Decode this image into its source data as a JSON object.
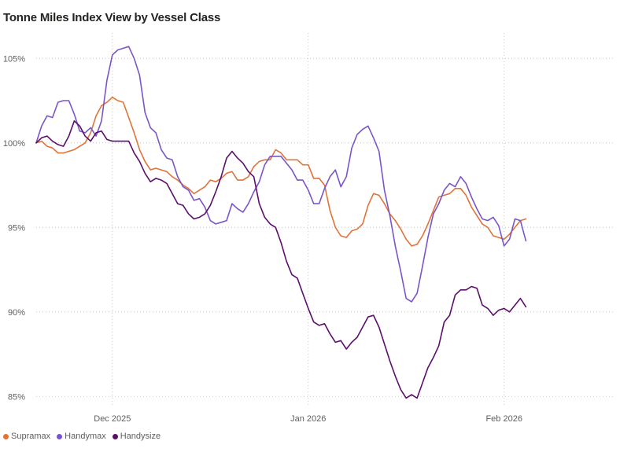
{
  "chart_data": {
    "type": "line",
    "title": "Tonne Miles Index View by Vessel Class",
    "xlabel": "",
    "ylabel": "",
    "ylim": [
      84.5,
      106.5
    ],
    "yticks": [
      85,
      90,
      95,
      100,
      105
    ],
    "ytick_labels": [
      "85%",
      "90%",
      "95%",
      "100%",
      "105%"
    ],
    "xlim": [
      -14,
      92
    ],
    "xticks": [
      {
        "x": 0,
        "label": "Dec 2025"
      },
      {
        "x": 36,
        "label": "Jan 2026"
      },
      {
        "x": 72,
        "label": "Feb 2026"
      }
    ],
    "grid": true,
    "legend_position": "bottom-left",
    "x_unit": "days since 1 Dec 2025",
    "series": [
      {
        "name": "Supramax",
        "color": "#E07339",
        "points": [
          [
            -14,
            100.0
          ],
          [
            -13,
            100.1
          ],
          [
            -12,
            99.8
          ],
          [
            -11,
            99.7
          ],
          [
            -10,
            99.4
          ],
          [
            -9,
            99.4
          ],
          [
            -8,
            99.5
          ],
          [
            -7,
            99.6
          ],
          [
            -6,
            99.8
          ],
          [
            -5,
            100.0
          ],
          [
            -4,
            100.6
          ],
          [
            -3,
            101.6
          ],
          [
            -2,
            102.2
          ],
          [
            -1,
            102.4
          ],
          [
            0,
            102.7
          ],
          [
            1,
            102.5
          ],
          [
            2,
            102.4
          ],
          [
            3,
            101.5
          ],
          [
            4,
            100.6
          ],
          [
            5,
            99.6
          ],
          [
            6,
            98.9
          ],
          [
            7,
            98.4
          ],
          [
            8,
            98.5
          ],
          [
            9,
            98.4
          ],
          [
            10,
            98.3
          ],
          [
            11,
            98.0
          ],
          [
            12,
            97.8
          ],
          [
            13,
            97.5
          ],
          [
            14,
            97.3
          ],
          [
            15,
            97.0
          ],
          [
            16,
            97.2
          ],
          [
            17,
            97.4
          ],
          [
            18,
            97.8
          ],
          [
            19,
            97.7
          ],
          [
            20,
            97.9
          ],
          [
            21,
            98.2
          ],
          [
            22,
            98.3
          ],
          [
            23,
            97.8
          ],
          [
            24,
            97.8
          ],
          [
            25,
            98.0
          ],
          [
            26,
            98.6
          ],
          [
            27,
            98.9
          ],
          [
            28,
            99.0
          ],
          [
            29,
            99.0
          ],
          [
            30,
            99.6
          ],
          [
            31,
            99.4
          ],
          [
            32,
            99.0
          ],
          [
            33,
            99.0
          ],
          [
            34,
            99.0
          ],
          [
            35,
            98.7
          ],
          [
            36,
            98.7
          ],
          [
            37,
            97.9
          ],
          [
            38,
            97.9
          ],
          [
            39,
            97.5
          ],
          [
            40,
            96.0
          ],
          [
            41,
            95.0
          ],
          [
            42,
            94.5
          ],
          [
            43,
            94.4
          ],
          [
            44,
            94.8
          ],
          [
            45,
            94.9
          ],
          [
            46,
            95.2
          ],
          [
            47,
            96.3
          ],
          [
            48,
            97.0
          ],
          [
            49,
            96.9
          ],
          [
            50,
            96.4
          ],
          [
            51,
            95.8
          ],
          [
            52,
            95.4
          ],
          [
            53,
            94.9
          ],
          [
            54,
            94.3
          ],
          [
            55,
            93.9
          ],
          [
            56,
            94.0
          ],
          [
            57,
            94.5
          ],
          [
            58,
            95.2
          ],
          [
            59,
            96.0
          ],
          [
            60,
            96.8
          ],
          [
            61,
            96.9
          ],
          [
            62,
            97.0
          ],
          [
            63,
            97.3
          ],
          [
            64,
            97.3
          ],
          [
            65,
            96.9
          ],
          [
            66,
            96.2
          ],
          [
            67,
            95.7
          ],
          [
            68,
            95.2
          ],
          [
            69,
            95.0
          ],
          [
            70,
            94.5
          ],
          [
            71,
            94.4
          ],
          [
            72,
            94.3
          ],
          [
            73,
            94.6
          ],
          [
            74,
            95.0
          ],
          [
            75,
            95.4
          ],
          [
            76,
            95.5
          ]
        ]
      },
      {
        "name": "Handymax",
        "color": "#7A55C8",
        "points": [
          [
            -14,
            100.0
          ],
          [
            -13,
            101.0
          ],
          [
            -12,
            101.6
          ],
          [
            -11,
            101.5
          ],
          [
            -10,
            102.4
          ],
          [
            -9,
            102.5
          ],
          [
            -8,
            102.5
          ],
          [
            -7,
            101.7
          ],
          [
            -6,
            100.7
          ],
          [
            -5,
            100.6
          ],
          [
            -4,
            100.9
          ],
          [
            -3,
            100.4
          ],
          [
            -2,
            101.3
          ],
          [
            -1,
            103.7
          ],
          [
            0,
            105.2
          ],
          [
            1,
            105.5
          ],
          [
            2,
            105.6
          ],
          [
            3,
            105.7
          ],
          [
            4,
            105.0
          ],
          [
            5,
            104.0
          ],
          [
            6,
            101.8
          ],
          [
            7,
            100.9
          ],
          [
            8,
            100.6
          ],
          [
            9,
            99.6
          ],
          [
            10,
            99.1
          ],
          [
            11,
            99.0
          ],
          [
            12,
            98.0
          ],
          [
            13,
            97.4
          ],
          [
            14,
            97.2
          ],
          [
            15,
            96.6
          ],
          [
            16,
            96.7
          ],
          [
            17,
            96.2
          ],
          [
            18,
            95.4
          ],
          [
            19,
            95.2
          ],
          [
            20,
            95.3
          ],
          [
            21,
            95.4
          ],
          [
            22,
            96.4
          ],
          [
            23,
            96.1
          ],
          [
            24,
            95.9
          ],
          [
            25,
            96.4
          ],
          [
            26,
            97.1
          ],
          [
            27,
            97.7
          ],
          [
            28,
            98.7
          ],
          [
            29,
            99.2
          ],
          [
            30,
            99.2
          ],
          [
            31,
            99.2
          ],
          [
            32,
            98.8
          ],
          [
            33,
            98.4
          ],
          [
            34,
            97.8
          ],
          [
            35,
            97.8
          ],
          [
            36,
            97.2
          ],
          [
            37,
            96.4
          ],
          [
            38,
            96.4
          ],
          [
            39,
            97.3
          ],
          [
            40,
            98.0
          ],
          [
            41,
            98.4
          ],
          [
            42,
            97.4
          ],
          [
            43,
            98.0
          ],
          [
            44,
            99.7
          ],
          [
            45,
            100.5
          ],
          [
            46,
            100.8
          ],
          [
            47,
            101.0
          ],
          [
            48,
            100.3
          ],
          [
            49,
            99.5
          ],
          [
            50,
            97.2
          ],
          [
            51,
            95.7
          ],
          [
            52,
            93.9
          ],
          [
            53,
            92.4
          ],
          [
            54,
            90.8
          ],
          [
            55,
            90.6
          ],
          [
            56,
            91.1
          ],
          [
            57,
            92.7
          ],
          [
            58,
            94.4
          ],
          [
            59,
            95.8
          ],
          [
            60,
            96.4
          ],
          [
            61,
            97.2
          ],
          [
            62,
            97.6
          ],
          [
            63,
            97.4
          ],
          [
            64,
            98.0
          ],
          [
            65,
            97.6
          ],
          [
            66,
            96.8
          ],
          [
            67,
            96.1
          ],
          [
            68,
            95.5
          ],
          [
            69,
            95.4
          ],
          [
            70,
            95.6
          ],
          [
            71,
            95.1
          ],
          [
            72,
            93.9
          ],
          [
            73,
            94.3
          ],
          [
            74,
            95.5
          ],
          [
            75,
            95.4
          ],
          [
            76,
            94.2
          ]
        ]
      },
      {
        "name": "Handysize",
        "color": "#5B0F6B",
        "points": [
          [
            -14,
            100.0
          ],
          [
            -13,
            100.3
          ],
          [
            -12,
            100.4
          ],
          [
            -11,
            100.1
          ],
          [
            -10,
            99.9
          ],
          [
            -9,
            99.8
          ],
          [
            -8,
            100.4
          ],
          [
            -7,
            101.3
          ],
          [
            -6,
            101.0
          ],
          [
            -5,
            100.4
          ],
          [
            -4,
            100.1
          ],
          [
            -3,
            100.6
          ],
          [
            -2,
            100.7
          ],
          [
            -1,
            100.2
          ],
          [
            0,
            100.1
          ],
          [
            1,
            100.1
          ],
          [
            2,
            100.1
          ],
          [
            3,
            100.1
          ],
          [
            4,
            99.4
          ],
          [
            5,
            98.9
          ],
          [
            6,
            98.2
          ],
          [
            7,
            97.7
          ],
          [
            8,
            97.9
          ],
          [
            9,
            97.8
          ],
          [
            10,
            97.6
          ],
          [
            11,
            97.0
          ],
          [
            12,
            96.4
          ],
          [
            13,
            96.3
          ],
          [
            14,
            95.8
          ],
          [
            15,
            95.5
          ],
          [
            16,
            95.6
          ],
          [
            17,
            95.8
          ],
          [
            18,
            96.3
          ],
          [
            19,
            97.1
          ],
          [
            20,
            98.0
          ],
          [
            21,
            99.1
          ],
          [
            22,
            99.5
          ],
          [
            23,
            99.1
          ],
          [
            24,
            98.8
          ],
          [
            25,
            98.3
          ],
          [
            26,
            98.0
          ],
          [
            27,
            96.4
          ],
          [
            28,
            95.6
          ],
          [
            29,
            95.2
          ],
          [
            30,
            95.0
          ],
          [
            31,
            94.1
          ],
          [
            32,
            93.0
          ],
          [
            33,
            92.2
          ],
          [
            34,
            92.0
          ],
          [
            35,
            91.1
          ],
          [
            36,
            90.2
          ],
          [
            37,
            89.4
          ],
          [
            38,
            89.2
          ],
          [
            39,
            89.3
          ],
          [
            40,
            88.7
          ],
          [
            41,
            88.2
          ],
          [
            42,
            88.3
          ],
          [
            43,
            87.8
          ],
          [
            44,
            88.2
          ],
          [
            45,
            88.5
          ],
          [
            46,
            89.1
          ],
          [
            47,
            89.7
          ],
          [
            48,
            89.8
          ],
          [
            49,
            89.1
          ],
          [
            50,
            88.1
          ],
          [
            51,
            87.1
          ],
          [
            52,
            86.2
          ],
          [
            53,
            85.4
          ],
          [
            54,
            84.9
          ],
          [
            55,
            85.1
          ],
          [
            56,
            84.9
          ],
          [
            57,
            85.8
          ],
          [
            58,
            86.7
          ],
          [
            59,
            87.3
          ],
          [
            60,
            88.0
          ],
          [
            61,
            89.4
          ],
          [
            62,
            89.8
          ],
          [
            63,
            91.0
          ],
          [
            64,
            91.3
          ],
          [
            65,
            91.3
          ],
          [
            66,
            91.5
          ],
          [
            67,
            91.4
          ],
          [
            68,
            90.4
          ],
          [
            69,
            90.2
          ],
          [
            70,
            89.8
          ],
          [
            71,
            90.1
          ],
          [
            72,
            90.2
          ],
          [
            73,
            90.0
          ],
          [
            74,
            90.4
          ],
          [
            75,
            90.8
          ],
          [
            76,
            90.3
          ]
        ]
      }
    ]
  }
}
